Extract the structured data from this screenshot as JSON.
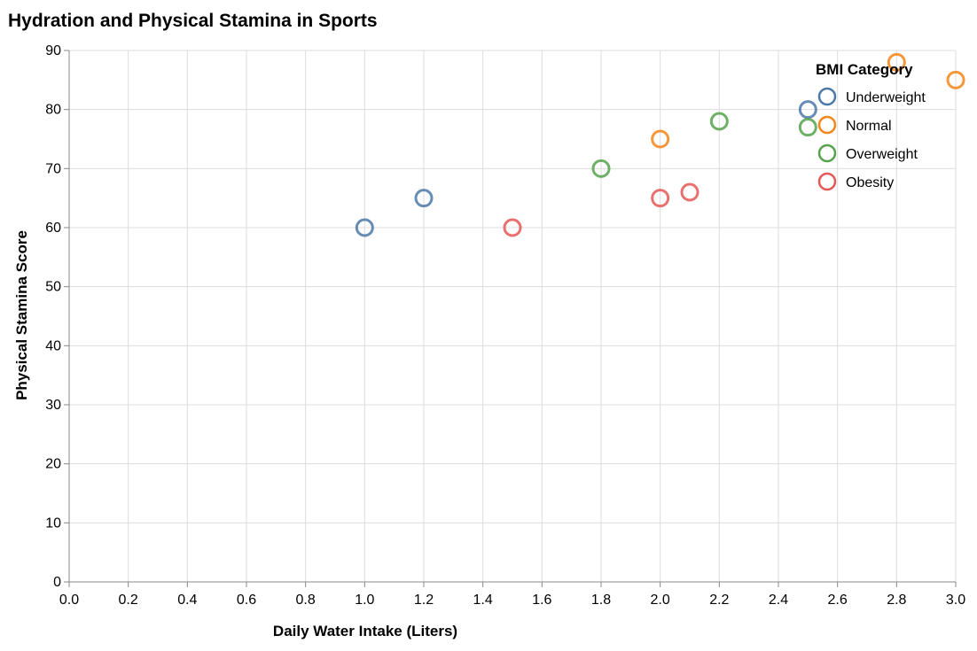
{
  "chart_data": {
    "type": "scatter",
    "title": "Hydration and Physical Stamina in Sports",
    "xlabel": "Daily Water Intake (Liters)",
    "ylabel": "Physical Stamina Score",
    "xlim": [
      0,
      3.0
    ],
    "ylim": [
      0,
      90
    ],
    "x_ticks": [
      "0.0",
      "0.2",
      "0.4",
      "0.6",
      "0.8",
      "1.0",
      "1.2",
      "1.4",
      "1.6",
      "1.8",
      "2.0",
      "2.2",
      "2.4",
      "2.6",
      "2.8",
      "3.0"
    ],
    "y_ticks": [
      "0",
      "10",
      "20",
      "30",
      "40",
      "50",
      "60",
      "70",
      "80",
      "90"
    ],
    "grid": true,
    "legend": {
      "title": "BMI Category",
      "placement": "top-right"
    },
    "series": [
      {
        "name": "Underweight",
        "color": "#4c78a8",
        "points": [
          {
            "x": 1.0,
            "y": 60
          },
          {
            "x": 1.2,
            "y": 65
          },
          {
            "x": 2.5,
            "y": 80
          }
        ]
      },
      {
        "name": "Normal",
        "color": "#f58518",
        "points": [
          {
            "x": 2.0,
            "y": 75
          },
          {
            "x": 2.8,
            "y": 88
          },
          {
            "x": 3.0,
            "y": 85
          }
        ]
      },
      {
        "name": "Overweight",
        "color": "#54a24b",
        "points": [
          {
            "x": 1.8,
            "y": 70
          },
          {
            "x": 2.2,
            "y": 78
          },
          {
            "x": 2.5,
            "y": 77
          }
        ]
      },
      {
        "name": "Obesity",
        "color": "#e45756",
        "points": [
          {
            "x": 1.5,
            "y": 60
          },
          {
            "x": 2.0,
            "y": 65
          },
          {
            "x": 2.1,
            "y": 66
          }
        ]
      }
    ]
  }
}
